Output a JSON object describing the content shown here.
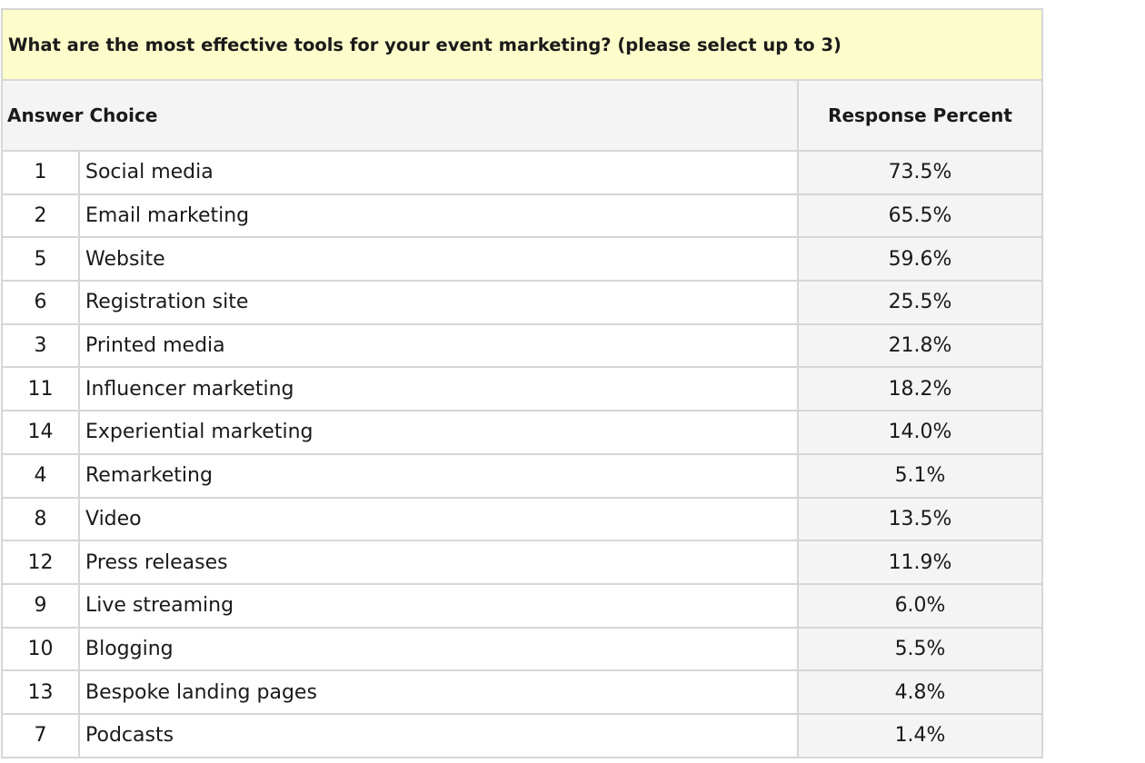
{
  "question": "What are the most effective tools for your event marketing? (please select up to 3)",
  "header": {
    "answer_choice": "Answer Choice",
    "response_percent": "Response Percent"
  },
  "rows": [
    {
      "rank": "1",
      "label": "Social media",
      "percent": "73.5%"
    },
    {
      "rank": "2",
      "label": "Email marketing",
      "percent": "65.5%"
    },
    {
      "rank": "5",
      "label": "Website",
      "percent": "59.6%"
    },
    {
      "rank": "6",
      "label": "Registration site",
      "percent": "25.5%"
    },
    {
      "rank": "3",
      "label": "Printed media",
      "percent": "21.8%"
    },
    {
      "rank": "11",
      "label": "Influencer marketing",
      "percent": "18.2%"
    },
    {
      "rank": "14",
      "label": "Experiential marketing",
      "percent": "14.0%"
    },
    {
      "rank": "4",
      "label": "Remarketing",
      "percent": "5.1%"
    },
    {
      "rank": "8",
      "label": "Video",
      "percent": "13.5%"
    },
    {
      "rank": "12",
      "label": "Press releases",
      "percent": "11.9%"
    },
    {
      "rank": "9",
      "label": "Live streaming",
      "percent": "6.0%"
    },
    {
      "rank": "10",
      "label": "Blogging",
      "percent": "5.5%"
    },
    {
      "rank": "13",
      "label": "Bespoke landing pages",
      "percent": "4.8%"
    },
    {
      "rank": "7",
      "label": "Podcasts",
      "percent": "1.4%"
    }
  ]
}
